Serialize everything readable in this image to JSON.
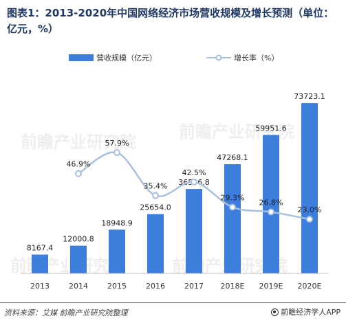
{
  "title": "图表1：2013-2020年中国网络经济市场营收规模及增长预测（单位：亿元，%）",
  "source": "资料来源：艾媒 前瞻产业研究院整理",
  "brand": "前瞻经济学人APP",
  "watermark": "前瞻产业研究院",
  "colors": {
    "bar": "#3d7ddb",
    "line": "#a9c0dd",
    "marker": "#a9c0dd"
  },
  "chart_data": {
    "type": "bar",
    "categories": [
      "2013",
      "2014",
      "2015",
      "2016",
      "2017",
      "2018E",
      "2019E",
      "2020E"
    ],
    "series": [
      {
        "name": "营收规模（亿元）",
        "type": "bar",
        "values": [
          8167.4,
          12000.8,
          18948.9,
          25654.0,
          36556.8,
          47268.1,
          59951.6,
          73723.1
        ],
        "labels": [
          "8167.4",
          "12000.8",
          "18948.9",
          "25654.0",
          "36556.8",
          "47268.1",
          "59951.6",
          "73723.1"
        ]
      },
      {
        "name": "增长率（%）",
        "type": "line",
        "values": [
          null,
          46.9,
          57.9,
          35.4,
          42.5,
          29.3,
          26.8,
          23.0
        ],
        "labels": [
          null,
          "46.9%",
          "57.9%",
          "35.4%",
          "42.5%",
          "29.3%",
          "26.8%",
          "23.0%"
        ]
      }
    ],
    "ylim_bar": [
      0,
      80000
    ],
    "ylim_line": [
      0,
      90
    ],
    "legend_position": "top",
    "grid": false
  }
}
